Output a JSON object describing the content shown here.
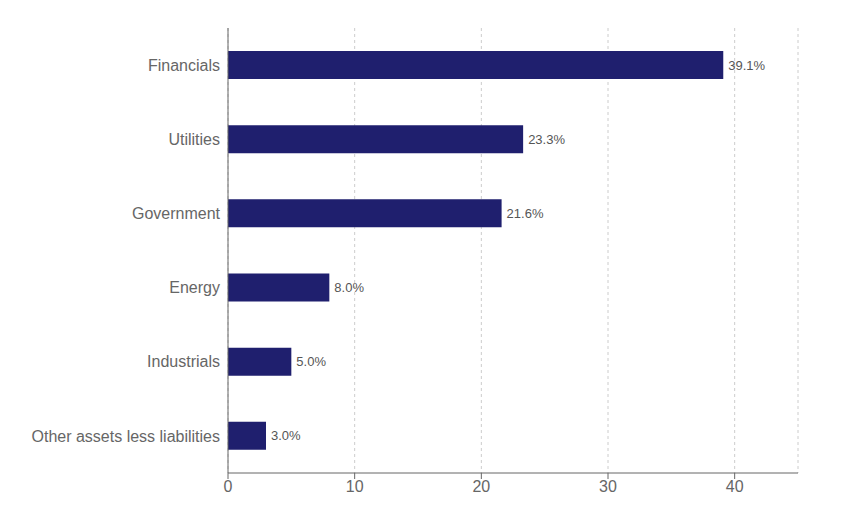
{
  "chart_data": {
    "type": "bar",
    "orientation": "horizontal",
    "categories": [
      "Financials",
      "Utilities",
      "Government",
      "Energy",
      "Industrials",
      "Other assets less liabilities"
    ],
    "values": [
      39.1,
      23.3,
      21.6,
      8.0,
      5.0,
      3.0
    ],
    "value_labels": [
      "39.1%",
      "23.3%",
      "21.6%",
      "8.0%",
      "5.0%",
      "3.0%"
    ],
    "data_labels": true,
    "color": "#1f1f6e",
    "xlim": [
      0,
      45
    ],
    "xticks": [
      0,
      10,
      20,
      30,
      40
    ],
    "grid": true
  }
}
